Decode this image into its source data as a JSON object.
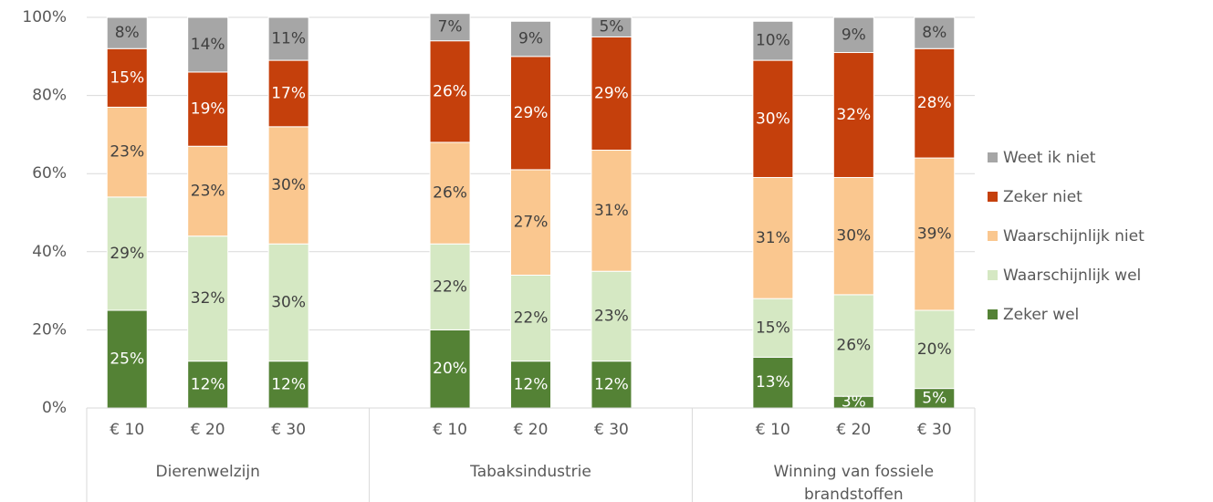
{
  "chart_data": {
    "type": "stacked_bar",
    "groups": [
      "Dierenwelzijn",
      "Tabaksindustrie",
      "Winning van fossiele brandstoffen"
    ],
    "categories": [
      "€ 10",
      "€ 20",
      "€ 30",
      "€ 10",
      "€ 20",
      "€ 30",
      "€ 10",
      "€ 20",
      "€ 30"
    ],
    "series": [
      {
        "name": "Zeker wel",
        "color": "#548235",
        "values": [
          25,
          12,
          12,
          20,
          12,
          12,
          13,
          3,
          5
        ],
        "value_labels": [
          "25%",
          "12%",
          "12%",
          "20%",
          "12%",
          "12%",
          "13%",
          "3%",
          "5%"
        ]
      },
      {
        "name": "Waarschijnlijk wel",
        "color": "#d5e8c3",
        "values": [
          29,
          32,
          30,
          22,
          22,
          23,
          15,
          26,
          20
        ],
        "value_labels": [
          "29%",
          "32%",
          "30%",
          "22%",
          "22%",
          "23%",
          "15%",
          "26%",
          "20%"
        ]
      },
      {
        "name": "Waarschijnlijk niet",
        "color": "#fac78f",
        "values": [
          23,
          23,
          30,
          26,
          27,
          31,
          31,
          30,
          39
        ],
        "value_labels": [
          "23%",
          "23%",
          "30%",
          "26%",
          "27%",
          "31%",
          "31%",
          "30%",
          "39%"
        ]
      },
      {
        "name": "Zeker niet",
        "color": "#c5400c",
        "values": [
          15,
          19,
          17,
          26,
          29,
          29,
          30,
          32,
          28
        ],
        "value_labels": [
          "15%",
          "19%",
          "17%",
          "26%",
          "29%",
          "29%",
          "30%",
          "32%",
          "28%"
        ]
      },
      {
        "name": "Weet ik niet",
        "color": "#a6a6a6",
        "values": [
          8,
          14,
          11,
          7,
          9,
          5,
          10,
          9,
          8
        ],
        "value_labels": [
          "8%",
          "14%",
          "11%",
          "7%",
          "9%",
          "5%",
          "10%",
          "9%",
          "8%"
        ]
      }
    ],
    "ylim": [
      0,
      100
    ],
    "yticks": [
      {
        "value": 0,
        "label": "0%"
      },
      {
        "value": 20,
        "label": "20%"
      },
      {
        "value": 40,
        "label": "40%"
      },
      {
        "value": 60,
        "label": "60%"
      },
      {
        "value": 80,
        "label": "80%"
      },
      {
        "value": 100,
        "label": "100%"
      }
    ],
    "grid": true,
    "legend": "right"
  }
}
